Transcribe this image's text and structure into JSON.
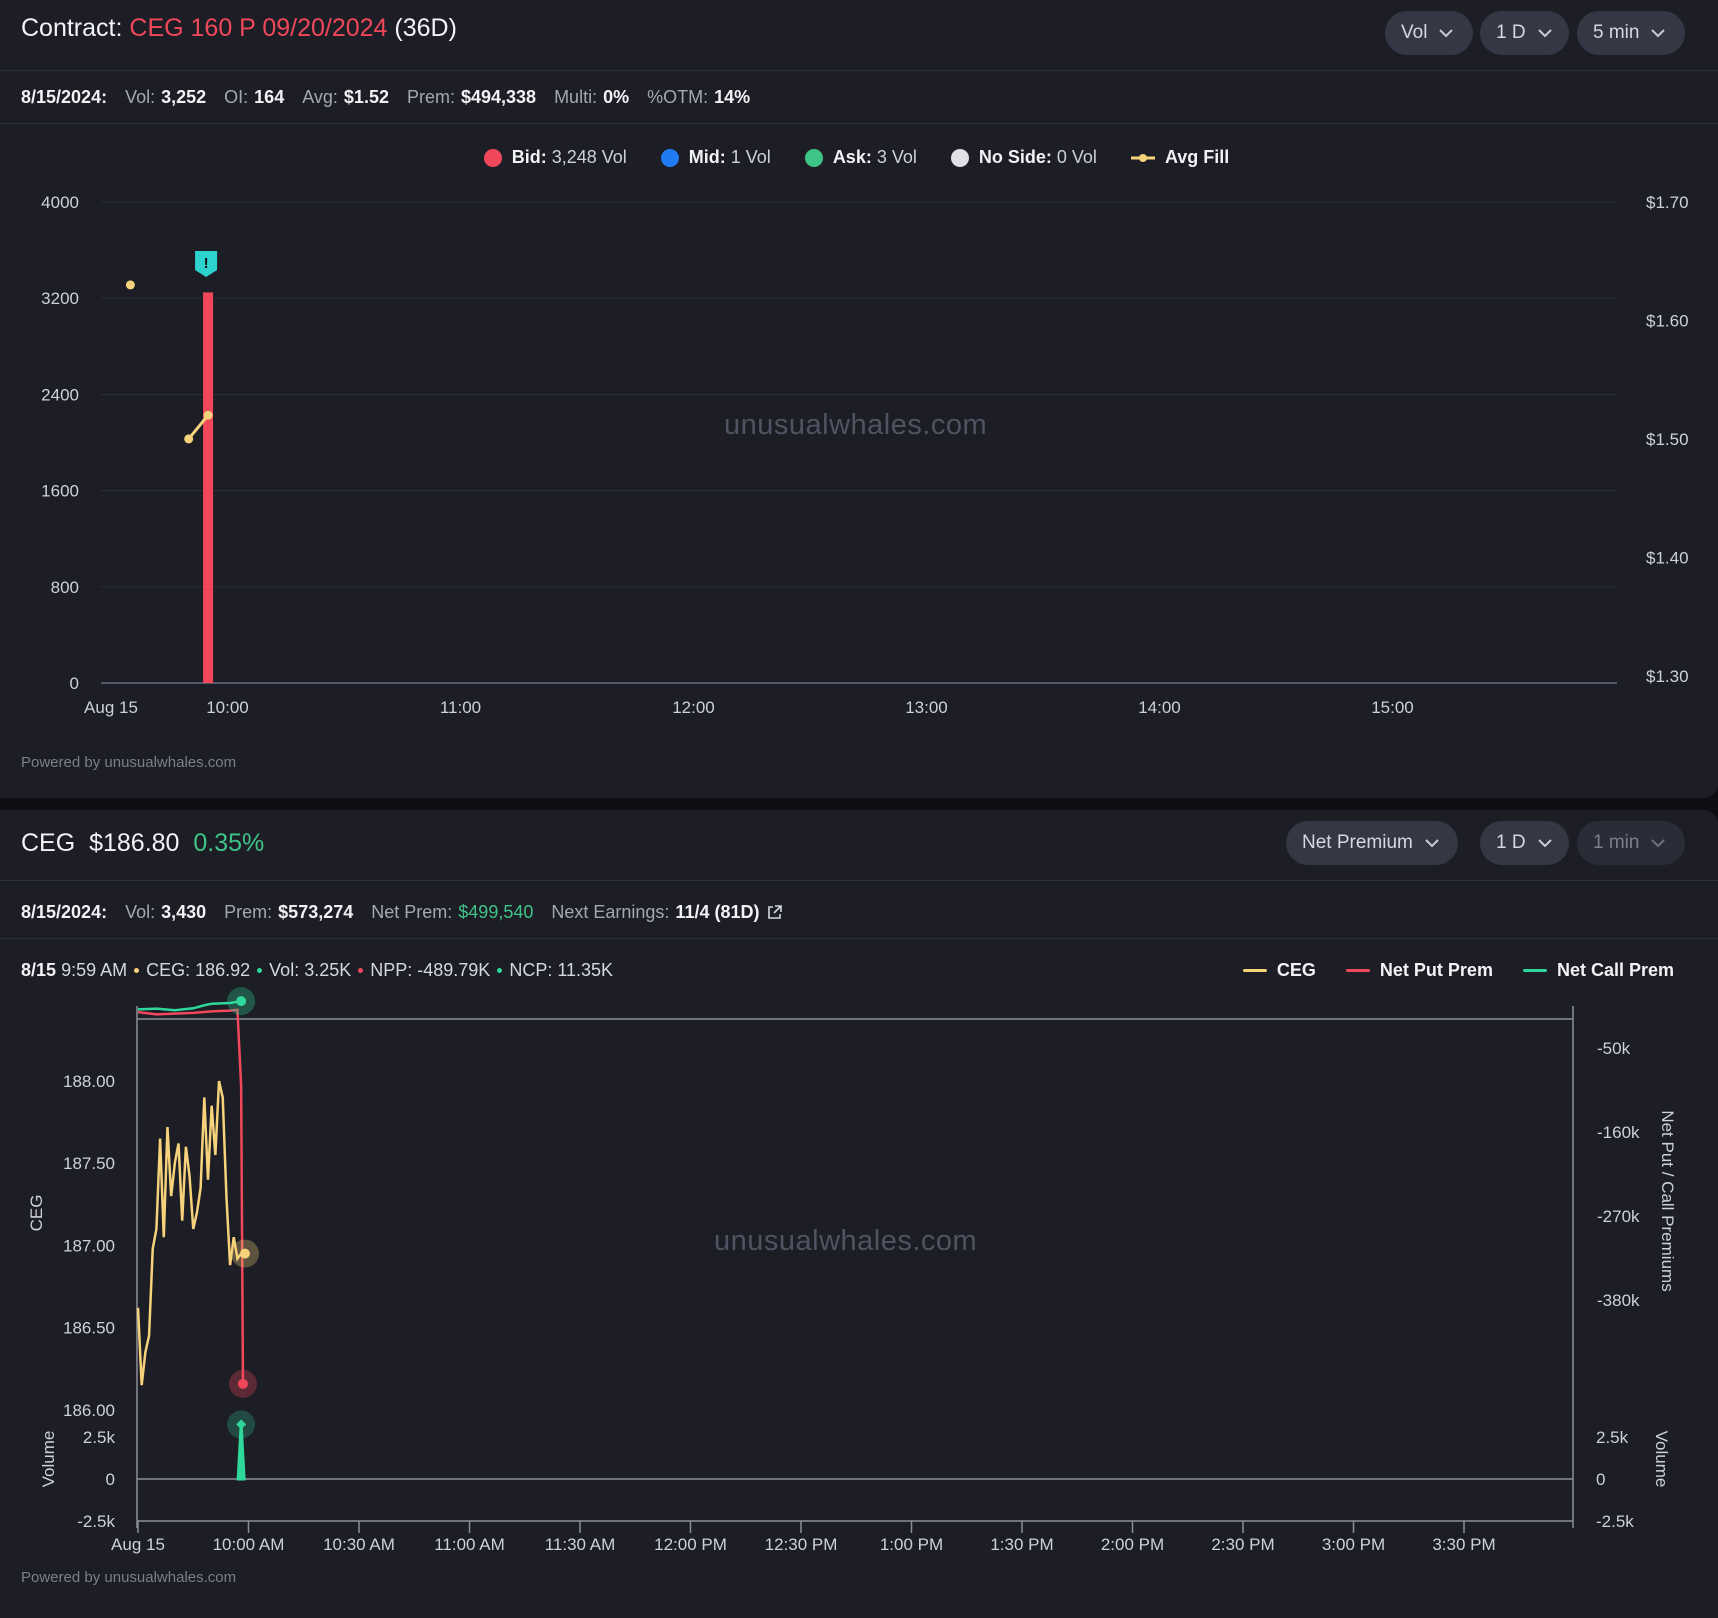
{
  "panel1": {
    "title_prefix": "Contract:",
    "contract": "CEG 160 P 09/20/2024",
    "dte": "(36D)",
    "dropdowns": [
      "Vol",
      "1 D",
      "5 min"
    ],
    "stats": {
      "date": "8/15/2024:",
      "vol_label": "Vol:",
      "vol": "3,252",
      "oi_label": "OI:",
      "oi": "164",
      "avg_label": "Avg:",
      "avg": "$1.52",
      "prem_label": "Prem:",
      "prem": "$494,338",
      "multi_label": "Multi:",
      "multi": "0%",
      "otm_label": "%OTM:",
      "otm": "14%"
    },
    "legend": [
      {
        "key": "Bid:",
        "value": "3,248 Vol",
        "color": "#f0485a"
      },
      {
        "key": "Mid:",
        "value": "1 Vol",
        "color": "#1f7bf2"
      },
      {
        "key": "Ask:",
        "value": "3 Vol",
        "color": "#3ec487"
      },
      {
        "key": "No Side:",
        "value": "0 Vol",
        "color": "#dfe1e6"
      },
      {
        "key": "Avg Fill",
        "value": "",
        "color": "#f6d27a"
      }
    ],
    "watermark": "unusualwhales.com",
    "powered": "Powered by unusualwhales.com"
  },
  "panel2": {
    "ticker": "CEG",
    "price": "$186.80",
    "change": "0.35%",
    "dropdowns": [
      "Net Premium",
      "1 D",
      "1 min"
    ],
    "stats": {
      "date": "8/15/2024:",
      "vol_label": "Vol:",
      "vol": "3,430",
      "prem_label": "Prem:",
      "prem": "$573,274",
      "netprem_label": "Net Prem:",
      "netprem": "$499,540",
      "earn_label": "Next Earnings:",
      "earn": "11/4 (81D)"
    },
    "info": {
      "date": "8/15",
      "time": "9:59 AM",
      "ceg": "CEG: 186.92",
      "vol": "Vol: 3.25K",
      "npp": "NPP: -489.79K",
      "ncp": "NCP: 11.35K"
    },
    "legend": [
      {
        "label": "CEG",
        "color": "#f6d27a"
      },
      {
        "label": "Net Put Prem",
        "color": "#f0485a"
      },
      {
        "label": "Net Call Prem",
        "color": "#2fd89a"
      }
    ],
    "watermark": "unusualwhales.com",
    "powered": "Powered by unusualwhales.com"
  },
  "chart_data": [
    {
      "type": "bar",
      "title": "",
      "x_ticks": [
        "Aug 15",
        "10:00",
        "11:00",
        "12:00",
        "13:00",
        "14:00",
        "15:00"
      ],
      "y_ticks": [
        "4000",
        "3200",
        "2400",
        "1600",
        "800",
        "0"
      ],
      "y2_ticks": [
        "$1.70",
        "$1.60",
        "$1.50",
        "$1.40",
        "$1.30"
      ],
      "ylim": [
        0,
        4000
      ],
      "y2lim": [
        1.25,
        1.7
      ],
      "bars": [
        {
          "time": "9:55",
          "side": "Bid",
          "value": 3248,
          "color": "#f0485a"
        }
      ],
      "avg_fill": [
        {
          "time": "9:35",
          "value": 1.63
        },
        {
          "time": "9:50",
          "value": 1.5
        },
        {
          "time": "9:55",
          "value": 1.52
        }
      ],
      "alert_marker": {
        "time": "9:55",
        "label": "!"
      }
    },
    {
      "type": "line",
      "x_ticks": [
        "Aug 15",
        "10:00 AM",
        "10:30 AM",
        "11:00 AM",
        "11:30 AM",
        "12:00 PM",
        "12:30 PM",
        "1:00 PM",
        "1:30 PM",
        "2:00 PM",
        "2:30 PM",
        "3:00 PM",
        "3:30 PM"
      ],
      "y_ticks": [
        "188.00",
        "187.50",
        "187.00",
        "186.50",
        "186.00"
      ],
      "y2_ticks": [
        "-50k",
        "-160k",
        "-270k",
        "-380k"
      ],
      "vol_ticks": [
        "2.5k",
        "0",
        "-2.5k"
      ],
      "ylabel": "CEG",
      "y2label": "Net Put / Call Premiums",
      "vol_label": "Volume",
      "ylim": [
        185.9,
        188.9
      ],
      "y2lim": [
        -490000,
        12000
      ],
      "series": [
        {
          "name": "CEG",
          "color": "#f6d27a",
          "times_min": [
            0,
            1,
            2,
            3,
            4,
            5,
            6,
            7,
            8,
            9,
            10,
            11,
            12,
            13,
            14,
            15,
            16,
            17,
            18,
            19,
            20,
            21,
            22,
            23,
            24,
            25,
            26,
            27,
            28
          ],
          "values": [
            186.62,
            186.15,
            186.35,
            186.45,
            186.98,
            187.1,
            187.65,
            187.05,
            187.72,
            187.3,
            187.5,
            187.62,
            187.15,
            187.6,
            187.42,
            187.1,
            187.2,
            187.35,
            187.9,
            187.4,
            187.85,
            187.55,
            188.0,
            187.9,
            187.3,
            186.88,
            187.05,
            186.92,
            186.95
          ]
        },
        {
          "name": "Net Put Prem",
          "color": "#f0485a",
          "times_min": [
            0,
            5,
            10,
            15,
            20,
            25,
            27,
            28,
            28.5
          ],
          "values": [
            -3000,
            -6000,
            -5000,
            -4000,
            -2000,
            -1000,
            0,
            -100000,
            -489790
          ]
        },
        {
          "name": "Net Call Prem",
          "color": "#2fd89a",
          "times_min": [
            0,
            5,
            10,
            15,
            18,
            20,
            25,
            28
          ],
          "values": [
            500,
            1500,
            -500,
            2000,
            6000,
            8000,
            9000,
            11350
          ]
        }
      ],
      "volume": [
        {
          "time_min": 28,
          "value": 3250
        }
      ]
    }
  ]
}
